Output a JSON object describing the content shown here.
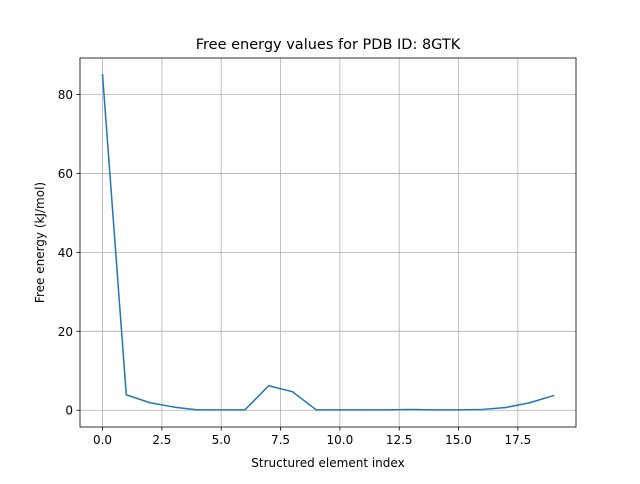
{
  "chart_data": {
    "type": "line",
    "title": "Free energy values for PDB ID: 8GTK",
    "xlabel": "Structured element index",
    "ylabel": "Free energy (kJ/mol)",
    "xlim": [
      -0.95,
      19.95
    ],
    "ylim": [
      -4.25,
      89.25
    ],
    "grid": true,
    "xticks": [
      0.0,
      2.5,
      5.0,
      7.5,
      10.0,
      12.5,
      15.0,
      17.5
    ],
    "xtick_labels": [
      "0.0",
      "2.5",
      "5.0",
      "7.5",
      "10.0",
      "12.5",
      "15.0",
      "17.5"
    ],
    "yticks": [
      0,
      20,
      40,
      60,
      80
    ],
    "ytick_labels": [
      "0",
      "20",
      "40",
      "60",
      "80"
    ],
    "series": [
      {
        "color": "#1f77b4",
        "x": [
          0,
          1,
          2,
          3,
          4,
          5,
          6,
          7,
          8,
          9,
          10,
          11,
          12,
          13,
          14,
          15,
          16,
          17,
          18,
          19
        ],
        "values": [
          85.0,
          3.9,
          1.9,
          0.8,
          0.1,
          0.1,
          0.1,
          6.2,
          4.7,
          0.1,
          0.1,
          0.1,
          0.1,
          0.2,
          0.1,
          0.1,
          0.2,
          0.7,
          1.9,
          3.7
        ]
      }
    ]
  }
}
